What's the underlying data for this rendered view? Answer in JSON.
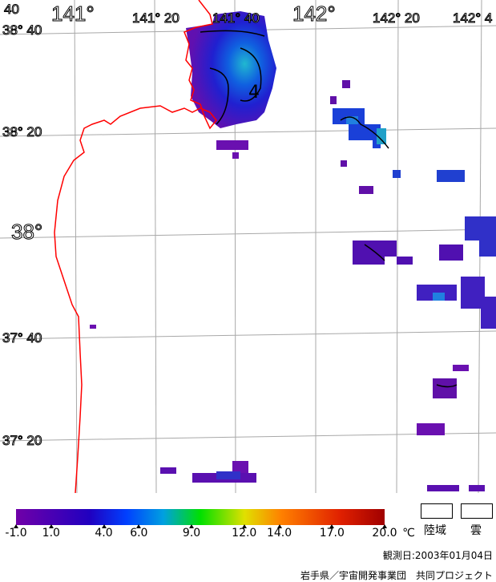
{
  "map": {
    "lat_labels": [
      "38° 40",
      "38° 20",
      "38°",
      "37° 40",
      "37° 20"
    ],
    "lon_labels": [
      "141°",
      "141° 20",
      "141° 40",
      "142°",
      "142° 20",
      "142° 4"
    ],
    "corner_label": "40",
    "contour_label": "4",
    "coastline_color": "#ff0000",
    "grid_color": "#a0a0a0"
  },
  "legend": {
    "unit": "℃",
    "ticks": [
      "-1.0",
      "1.0",
      "4.0",
      "6.0",
      "9.0",
      "12.0",
      "14.0",
      "17.0",
      "20.0"
    ],
    "tick_values": [
      -1,
      1,
      4,
      6,
      9,
      12,
      14,
      17,
      20
    ],
    "range": [
      -1,
      20
    ],
    "colors": [
      "#7000a8",
      "#2000c0",
      "#0040ff",
      "#00a0e0",
      "#00e000",
      "#e0e000",
      "#ff8000",
      "#e02000",
      "#a00000"
    ],
    "land_label": "陸域",
    "cloud_label": "雲"
  },
  "footer": {
    "date": "観測日:2003年01月04日",
    "credit": "岩手県／宇宙開発事業団　共同プロジェクト"
  }
}
